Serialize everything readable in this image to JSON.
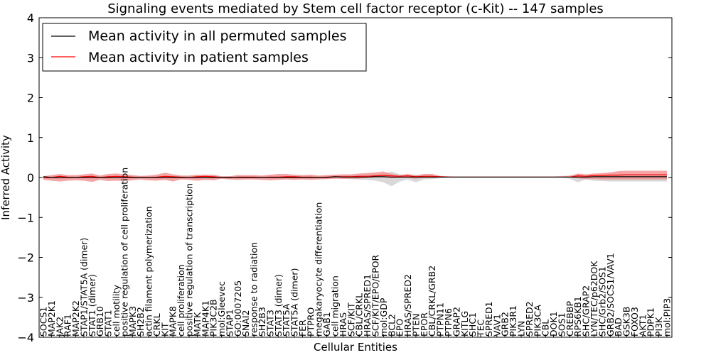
{
  "chart_data": {
    "type": "line",
    "title": "Signaling events mediated by Stem cell factor receptor (c-Kit) -- 147 samples",
    "xlabel": "Cellular Entities",
    "ylabel": "Inferred Activity",
    "ylim": [
      -4,
      4
    ],
    "yticks": [
      "4",
      "3",
      "2",
      "1",
      "0",
      "−1",
      "−2",
      "−3",
      "−4"
    ],
    "ytick_values": [
      4,
      3,
      2,
      1,
      0,
      -1,
      -2,
      -3,
      -4
    ],
    "legend": {
      "position": "top-left",
      "entries": [
        "Mean activity in all permuted samples",
        "Mean activity in patient samples"
      ]
    },
    "colors": {
      "permuted": "#000000",
      "patient": "#ff0000",
      "patient_band": "#f08080",
      "permuted_band": "#cccccc"
    },
    "categories": [
      "SOCS1",
      "MAP2K1",
      "JAK2",
      "RAF1",
      "MAP2K2",
      "STAP1/STAT5A (dimer)",
      "STAT1 (dimer)",
      "GRB10",
      "STAT1",
      "cell motility",
      "positive regulation of cell proliferation",
      "MAPK3",
      "SH2B2",
      "actin filament polymerization",
      "CRKL",
      "KIT",
      "MAPK8",
      "cell proliferation",
      "positive regulation of transcription",
      "MATK",
      "MAP4K1",
      "PIK3C2B",
      "mol:Gleevec",
      "STAP1",
      "GO:0007205",
      "SNAI2",
      "response to radiation",
      "SH2B3",
      "STAT3",
      "STAT3 (dimer)",
      "STAT5A",
      "STAT5A (dimer)",
      "FER",
      "PTPRO",
      "megakaryocyte differentiation",
      "GAB1",
      "cell migration",
      "HRAS",
      "SCF/KIT",
      "CBL/CRKL",
      "HRAS/SPRED1",
      "SCF/KIT/EPO/EPOR",
      "mol:GDP",
      "BCL2",
      "EPO",
      "HRAS/SPRED2",
      "PTEN",
      "EPOR",
      "CBL/CRKL/GRB2",
      "PTPN11",
      "PTPN6",
      "GRAP2",
      "KITLG",
      "SHC1",
      "TEC",
      "SPRED1",
      "VAV1",
      "GRB2",
      "PIK3R1",
      "LYN",
      "SPRED2",
      "PIK3CA",
      "CBL",
      "DOK1",
      "SOS1",
      "CREBBP",
      "RPS6KB1",
      "SHC/GRAP2",
      "LYN/TEC/p62DOK",
      "SHC/Grb2/SOS1",
      "GRB2/SOCS1/VAV1",
      "BAD",
      "GSK3B",
      "FOXO3",
      "AKT1",
      "PDPK1",
      "PI3K",
      "mol:PIP3"
    ],
    "series": [
      {
        "name": "Mean activity in patient samples",
        "values": [
          -0.01,
          0.0,
          0.03,
          0.01,
          0.0,
          0.02,
          0.03,
          0.0,
          0.02,
          0.03,
          0.02,
          0.01,
          0.0,
          0.0,
          0.01,
          0.03,
          0.02,
          0.01,
          0.0,
          0.02,
          0.03,
          0.02,
          0.0,
          -0.01,
          0.01,
          0.01,
          0.01,
          0.0,
          0.01,
          0.01,
          0.02,
          0.02,
          0.01,
          0.01,
          0.0,
          0.01,
          0.02,
          0.02,
          0.02,
          0.03,
          0.03,
          0.04,
          0.05,
          0.04,
          0.03,
          0.04,
          0.02,
          0.03,
          0.03,
          0.02,
          0.01,
          0.01,
          0.01,
          0.01,
          0.01,
          0.01,
          0.01,
          0.01,
          0.01,
          0.01,
          0.01,
          0.01,
          0.01,
          0.01,
          0.01,
          0.01,
          0.04,
          0.03,
          0.05,
          0.05,
          0.06,
          0.06,
          0.07,
          0.07,
          0.07,
          0.07,
          0.07,
          0.07
        ],
        "lower": [
          -0.06,
          -0.08,
          -0.1,
          -0.08,
          -0.07,
          -0.08,
          -0.11,
          -0.06,
          -0.09,
          -0.08,
          -0.09,
          -0.07,
          -0.05,
          -0.07,
          -0.08,
          -0.06,
          -0.1,
          -0.05,
          -0.06,
          -0.08,
          -0.06,
          -0.07,
          -0.03,
          -0.05,
          -0.06,
          -0.05,
          -0.05,
          -0.06,
          -0.07,
          -0.06,
          -0.05,
          -0.06,
          -0.05,
          -0.06,
          -0.05,
          -0.04,
          -0.03,
          -0.03,
          -0.03,
          -0.03,
          -0.01,
          0.0,
          0.0,
          -0.02,
          -0.01,
          -0.01,
          -0.03,
          -0.01,
          -0.01,
          0.0,
          0.0,
          0.0,
          0.0,
          0.0,
          0.0,
          0.0,
          0.0,
          0.0,
          0.0,
          0.0,
          0.0,
          0.0,
          0.0,
          0.0,
          0.0,
          0.0,
          -0.02,
          -0.04,
          -0.04,
          -0.05,
          -0.05,
          -0.05,
          -0.05,
          -0.05,
          -0.05,
          -0.05,
          -0.05,
          -0.05
        ],
        "upper": [
          0.03,
          0.06,
          0.09,
          0.06,
          0.06,
          0.08,
          0.1,
          0.05,
          0.09,
          0.1,
          0.08,
          0.06,
          0.04,
          0.05,
          0.07,
          0.12,
          0.08,
          0.05,
          0.05,
          0.07,
          0.07,
          0.07,
          0.03,
          0.03,
          0.06,
          0.06,
          0.06,
          0.05,
          0.07,
          0.09,
          0.09,
          0.07,
          0.06,
          0.07,
          0.05,
          0.06,
          0.07,
          0.08,
          0.08,
          0.1,
          0.11,
          0.13,
          0.15,
          0.09,
          0.06,
          0.09,
          0.05,
          0.09,
          0.09,
          0.04,
          0.03,
          0.02,
          0.02,
          0.02,
          0.02,
          0.02,
          0.02,
          0.02,
          0.02,
          0.02,
          0.02,
          0.02,
          0.02,
          0.02,
          0.03,
          0.04,
          0.1,
          0.08,
          0.1,
          0.11,
          0.13,
          0.16,
          0.17,
          0.17,
          0.17,
          0.17,
          0.17,
          0.17
        ]
      },
      {
        "name": "Mean activity in all permuted samples",
        "values": [
          0.02,
          0.0,
          0.0,
          0.0,
          0.0,
          0.0,
          0.0,
          0.0,
          0.0,
          0.0,
          0.0,
          0.0,
          0.0,
          0.0,
          0.0,
          0.0,
          0.0,
          0.0,
          0.0,
          0.0,
          0.0,
          0.0,
          0.0,
          0.0,
          0.0,
          0.0,
          0.0,
          0.0,
          0.0,
          0.0,
          0.0,
          0.0,
          0.0,
          0.0,
          0.0,
          0.0,
          0.02,
          0.01,
          0.01,
          0.01,
          0.01,
          0.02,
          0.02,
          0.01,
          0.01,
          0.01,
          0.01,
          0.01,
          0.01,
          0.01,
          0.01,
          0.01,
          0.01,
          0.01,
          0.01,
          0.01,
          0.01,
          0.01,
          0.01,
          0.01,
          0.01,
          0.01,
          0.01,
          0.01,
          0.01,
          0.01,
          0.01,
          0.01,
          0.02,
          0.02,
          0.02,
          0.02,
          0.02,
          0.02,
          0.02,
          0.02,
          0.02,
          0.02
        ],
        "lower": [
          -0.02,
          -0.03,
          -0.03,
          -0.02,
          -0.02,
          -0.02,
          -0.02,
          -0.02,
          -0.02,
          -0.02,
          -0.02,
          -0.02,
          -0.02,
          -0.02,
          -0.02,
          -0.02,
          -0.02,
          -0.02,
          -0.02,
          -0.02,
          -0.02,
          -0.02,
          -0.02,
          -0.02,
          -0.02,
          -0.02,
          -0.02,
          -0.02,
          -0.02,
          -0.02,
          -0.02,
          -0.02,
          -0.02,
          -0.02,
          -0.02,
          -0.02,
          -0.02,
          -0.03,
          -0.04,
          -0.05,
          -0.06,
          -0.08,
          -0.12,
          -0.22,
          -0.1,
          -0.05,
          -0.12,
          -0.05,
          -0.04,
          -0.02,
          -0.01,
          -0.01,
          -0.01,
          -0.01,
          -0.01,
          -0.01,
          -0.01,
          -0.01,
          -0.01,
          -0.01,
          -0.01,
          -0.01,
          -0.01,
          -0.01,
          -0.01,
          -0.03,
          -0.12,
          -0.05,
          -0.08,
          -0.09,
          -0.1,
          -0.1,
          -0.1,
          -0.1,
          -0.1,
          -0.1,
          -0.1,
          -0.1
        ],
        "upper": [
          0.04,
          0.03,
          0.03,
          0.03,
          0.03,
          0.03,
          0.03,
          0.03,
          0.03,
          0.03,
          0.03,
          0.03,
          0.03,
          0.03,
          0.03,
          0.03,
          0.03,
          0.03,
          0.03,
          0.03,
          0.03,
          0.03,
          0.03,
          0.03,
          0.03,
          0.03,
          0.03,
          0.03,
          0.03,
          0.03,
          0.03,
          0.03,
          0.03,
          0.03,
          0.03,
          0.03,
          0.05,
          0.05,
          0.05,
          0.06,
          0.07,
          0.08,
          0.09,
          0.15,
          0.08,
          0.06,
          0.07,
          0.06,
          0.05,
          0.03,
          0.03,
          0.03,
          0.03,
          0.03,
          0.03,
          0.03,
          0.03,
          0.03,
          0.03,
          0.03,
          0.03,
          0.03,
          0.03,
          0.03,
          0.04,
          0.05,
          0.08,
          0.06,
          0.06,
          0.07,
          0.08,
          0.08,
          0.08,
          0.08,
          0.08,
          0.08,
          0.08,
          0.08
        ]
      }
    ]
  }
}
